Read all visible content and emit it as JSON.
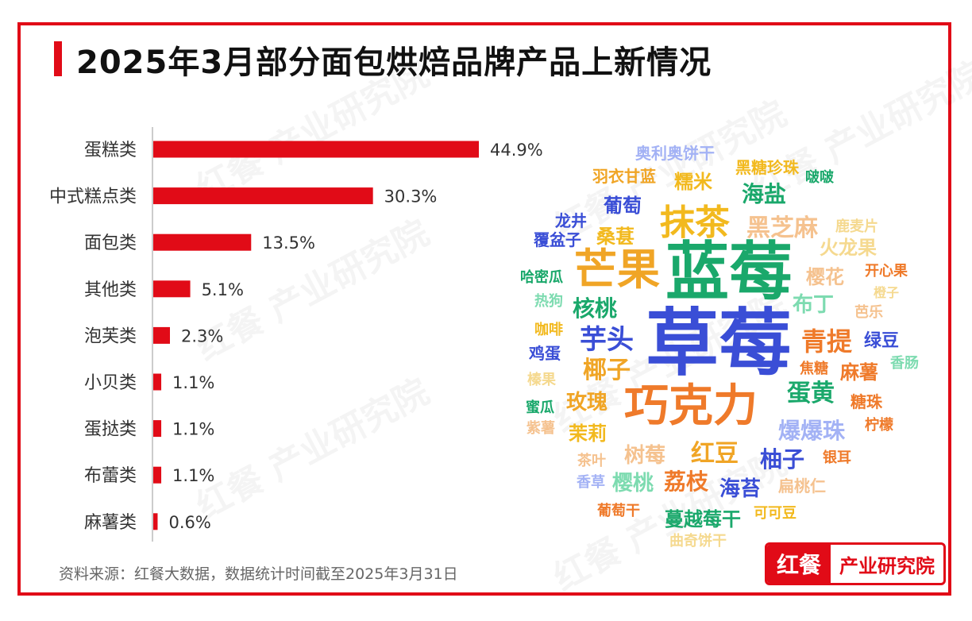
{
  "title": "2025年3月部分面包烘焙品牌产品上新情况",
  "source_note": "资料来源：红餐大数据，数据统计时间截至2025年3月31日",
  "logo": {
    "left": "红餐",
    "right": "产业研究院"
  },
  "watermark": "红餐 产业研究院",
  "colors": {
    "accent": "#e10b17",
    "bar": "#e10b17",
    "axis": "#cccccc"
  },
  "chart_data": {
    "type": "bar",
    "orientation": "horizontal",
    "categories": [
      "蛋糕类",
      "中式糕点类",
      "面包类",
      "其他类",
      "泡芙类",
      "小贝类",
      "蛋挞类",
      "布蕾类",
      "麻薯类"
    ],
    "values": [
      44.9,
      30.3,
      13.5,
      5.1,
      2.3,
      1.1,
      1.1,
      1.1,
      0.6
    ],
    "value_labels": [
      "44.9%",
      "30.3%",
      "13.5%",
      "5.1%",
      "2.3%",
      "1.1%",
      "1.1%",
      "1.1%",
      "0.6%"
    ],
    "unit": "%",
    "xlim": [
      0,
      50
    ],
    "grid": false,
    "legend": "none"
  },
  "word_cloud": [
    {
      "text": "草莓",
      "color": "#3a4ed6"
    },
    {
      "text": "蓝莓",
      "color": "#1aa86b"
    },
    {
      "text": "巧克力",
      "color": "#ef7a2a"
    },
    {
      "text": "芒果",
      "color": "#f0a526"
    },
    {
      "text": "抹茶",
      "color": "#f2b91e"
    },
    {
      "text": "芋头",
      "color": "#3a4ed6"
    },
    {
      "text": "青提",
      "color": "#ef7a2a"
    },
    {
      "text": "爆爆珠",
      "color": "#a3b2f5"
    },
    {
      "text": "红豆",
      "color": "#f0a526"
    },
    {
      "text": "蛋黄",
      "color": "#1aa86b"
    },
    {
      "text": "柚子",
      "color": "#3a4ed6"
    },
    {
      "text": "椰子",
      "color": "#f0a526"
    },
    {
      "text": "核桃",
      "color": "#1aa86b"
    },
    {
      "text": "黑芝麻",
      "color": "#f5c28f"
    },
    {
      "text": "海盐",
      "color": "#1aa86b"
    },
    {
      "text": "荔枝",
      "color": "#ef7a2a"
    },
    {
      "text": "树莓",
      "color": "#f5c28f"
    },
    {
      "text": "海苔",
      "color": "#3a4ed6"
    },
    {
      "text": "玫瑰",
      "color": "#f0a526"
    },
    {
      "text": "布丁",
      "color": "#7ddbb0"
    },
    {
      "text": "樱花",
      "color": "#f5c28f"
    },
    {
      "text": "麻薯",
      "color": "#ef7a2a"
    },
    {
      "text": "桑葚",
      "color": "#f2b91e"
    },
    {
      "text": "葡萄",
      "color": "#3a4ed6"
    },
    {
      "text": "糯米",
      "color": "#f2b91e"
    },
    {
      "text": "樱桃",
      "color": "#7ddbb0"
    },
    {
      "text": "茉莉",
      "color": "#f2b91e"
    },
    {
      "text": "火龙果",
      "color": "#f5d98f"
    },
    {
      "text": "蔓越莓干",
      "color": "#1aa86b"
    },
    {
      "text": "绿豆",
      "color": "#3a4ed6"
    },
    {
      "text": "糖珠",
      "color": "#ef7a2a"
    },
    {
      "text": "黑糖珍珠",
      "color": "#f2b91e"
    },
    {
      "text": "羽衣甘蓝",
      "color": "#f0a526"
    },
    {
      "text": "奥利奥饼干",
      "color": "#a3b2f5"
    },
    {
      "text": "鸡蛋",
      "color": "#3a4ed6"
    },
    {
      "text": "覆盆子",
      "color": "#3a4ed6"
    },
    {
      "text": "龙井",
      "color": "#3a4ed6"
    },
    {
      "text": "哈密瓜",
      "color": "#1aa86b"
    },
    {
      "text": "热狗",
      "color": "#7ddbb0"
    },
    {
      "text": "咖啡",
      "color": "#f2b91e"
    },
    {
      "text": "榛果",
      "color": "#f5d98f"
    },
    {
      "text": "蜜瓜",
      "color": "#1aa86b"
    },
    {
      "text": "紫薯",
      "color": "#f5c28f"
    },
    {
      "text": "茶叶",
      "color": "#f5c28f"
    },
    {
      "text": "香草",
      "color": "#a3b2f5"
    },
    {
      "text": "葡萄干",
      "color": "#ef7a2a"
    },
    {
      "text": "曲奇饼干",
      "color": "#f5d98f"
    },
    {
      "text": "可可豆",
      "color": "#f2b91e"
    },
    {
      "text": "扁桃仁",
      "color": "#f5c28f"
    },
    {
      "text": "银耳",
      "color": "#ef7a2a"
    },
    {
      "text": "柠檬",
      "color": "#ef7a2a"
    },
    {
      "text": "香肠",
      "color": "#7ddbb0"
    },
    {
      "text": "焦糖",
      "color": "#ef7a2a"
    },
    {
      "text": "芭乐",
      "color": "#f5c28f"
    },
    {
      "text": "橙子",
      "color": "#f5d98f"
    },
    {
      "text": "开心果",
      "color": "#ef7a2a"
    },
    {
      "text": "鹿麦片",
      "color": "#f5d98f"
    },
    {
      "text": "啵啵",
      "color": "#1aa86b"
    }
  ]
}
